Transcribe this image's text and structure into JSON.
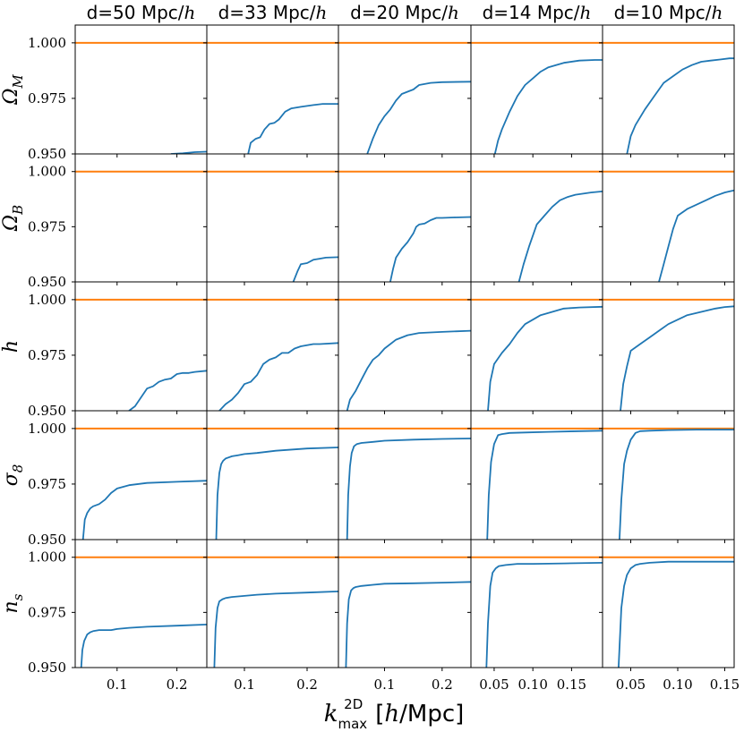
{
  "chart_data": {
    "type": "line",
    "layout": "grid 5 rows x 5 columns, shared y per row, shared x per column",
    "xlabel": {
      "symbol": "k",
      "sub": "max",
      "sup": "2D",
      "unit_pre": "[",
      "unit_h": "h",
      "unit_post": "/Mpc]"
    },
    "reference_line": {
      "y": 1.0,
      "color": "#ff7f0e"
    },
    "series_color": "#1f77b4",
    "ylim": [
      0.95,
      1.008
    ],
    "yticks": [
      0.95,
      0.975,
      1.0
    ],
    "ytick_labels": [
      "0.950",
      "0.975",
      "1.000"
    ],
    "columns": [
      {
        "title_pre": "d=50 Mpc/",
        "title_h": "h",
        "xlim": [
          0.03,
          0.25
        ],
        "xticks": [
          0.1,
          0.2
        ],
        "xtick_labels": [
          "0.1",
          "0.2"
        ]
      },
      {
        "title_pre": "d=33 Mpc/",
        "title_h": "h",
        "xlim": [
          0.04,
          0.25
        ],
        "xticks": [
          0.1,
          0.2
        ],
        "xtick_labels": [
          "0.1",
          "0.2"
        ]
      },
      {
        "title_pre": "d=20 Mpc/",
        "title_h": "h",
        "xlim": [
          0.02,
          0.25
        ],
        "xticks": [
          0.1,
          0.2
        ],
        "xtick_labels": [
          "0.1",
          "0.2"
        ]
      },
      {
        "title_pre": "d=14 Mpc/",
        "title_h": "h",
        "xlim": [
          0.02,
          0.19
        ],
        "xticks": [
          0.05,
          0.1,
          0.15
        ],
        "xtick_labels": [
          "0.05",
          "0.10",
          "0.15"
        ]
      },
      {
        "title_pre": "d=10 Mpc/",
        "title_h": "h",
        "xlim": [
          0.02,
          0.16
        ],
        "xticks": [
          0.05,
          0.1,
          0.15
        ],
        "xtick_labels": [
          "0.05",
          "0.10",
          "0.15"
        ]
      }
    ],
    "rows": [
      {
        "label": "Ω",
        "label_sub": "M",
        "series": [
          {
            "x": [
              0.19,
              0.21,
              0.23,
              0.25
            ],
            "y": [
              0.95,
              0.9503,
              0.9508,
              0.951
            ]
          },
          {
            "x": [
              0.106,
              0.11,
              0.118,
              0.125,
              0.132,
              0.14,
              0.148,
              0.155,
              0.165,
              0.175,
              0.19,
              0.21,
              0.225,
              0.25
            ],
            "y": [
              0.95,
              0.955,
              0.9568,
              0.9575,
              0.961,
              0.9635,
              0.964,
              0.9655,
              0.969,
              0.9705,
              0.9712,
              0.972,
              0.9725,
              0.9725
            ]
          },
          {
            "x": [
              0.07,
              0.08,
              0.09,
              0.1,
              0.11,
              0.12,
              0.13,
              0.14,
              0.15,
              0.16,
              0.18,
              0.2,
              0.25
            ],
            "y": [
              0.95,
              0.957,
              0.963,
              0.967,
              0.97,
              0.974,
              0.977,
              0.978,
              0.979,
              0.981,
              0.982,
              0.9823,
              0.9825
            ]
          },
          {
            "x": [
              0.051,
              0.055,
              0.06,
              0.07,
              0.08,
              0.09,
              0.1,
              0.11,
              0.12,
              0.13,
              0.14,
              0.16,
              0.18,
              0.19
            ],
            "y": [
              0.95,
              0.956,
              0.961,
              0.969,
              0.976,
              0.981,
              0.984,
              0.987,
              0.989,
              0.99,
              0.991,
              0.992,
              0.9923,
              0.9923
            ]
          },
          {
            "x": [
              0.046,
              0.05,
              0.055,
              0.065,
              0.075,
              0.085,
              0.095,
              0.105,
              0.115,
              0.125,
              0.135,
              0.145,
              0.155,
              0.16
            ],
            "y": [
              0.95,
              0.958,
              0.963,
              0.97,
              0.976,
              0.982,
              0.985,
              0.988,
              0.99,
              0.9915,
              0.992,
              0.9925,
              0.993,
              0.993
            ]
          }
        ]
      },
      {
        "label": "Ω",
        "label_sub": "B",
        "series": [
          {
            "x": [],
            "y": []
          },
          {
            "x": [
              0.178,
              0.185,
              0.19,
              0.2,
              0.21,
              0.22,
              0.23,
              0.25
            ],
            "y": [
              0.95,
              0.955,
              0.958,
              0.9585,
              0.96,
              0.9605,
              0.961,
              0.9612
            ]
          },
          {
            "x": [
              0.11,
              0.115,
              0.12,
              0.13,
              0.14,
              0.15,
              0.155,
              0.16,
              0.17,
              0.18,
              0.19,
              0.2,
              0.22,
              0.25
            ],
            "y": [
              0.95,
              0.956,
              0.961,
              0.965,
              0.968,
              0.972,
              0.975,
              0.976,
              0.9765,
              0.978,
              0.979,
              0.979,
              0.9792,
              0.9794
            ]
          },
          {
            "x": [
              0.082,
              0.088,
              0.095,
              0.105,
              0.115,
              0.125,
              0.135,
              0.145,
              0.155,
              0.165,
              0.175,
              0.19
            ],
            "y": [
              0.95,
              0.958,
              0.966,
              0.976,
              0.98,
              0.984,
              0.987,
              0.9885,
              0.9895,
              0.99,
              0.9905,
              0.991
            ]
          },
          {
            "x": [
              0.08,
              0.085,
              0.09,
              0.095,
              0.1,
              0.11,
              0.12,
              0.13,
              0.14,
              0.15,
              0.155,
              0.16
            ],
            "y": [
              0.95,
              0.958,
              0.966,
              0.974,
              0.98,
              0.983,
              0.985,
              0.987,
              0.989,
              0.9905,
              0.991,
              0.9915
            ]
          }
        ]
      },
      {
        "label": "h",
        "label_sub": "",
        "series": [
          {
            "x": [
              0.12,
              0.13,
              0.14,
              0.15,
              0.16,
              0.17,
              0.18,
              0.19,
              0.2,
              0.21,
              0.22,
              0.23,
              0.25
            ],
            "y": [
              0.95,
              0.952,
              0.956,
              0.96,
              0.961,
              0.963,
              0.964,
              0.9645,
              0.9665,
              0.967,
              0.967,
              0.9675,
              0.968
            ]
          },
          {
            "x": [
              0.06,
              0.07,
              0.08,
              0.09,
              0.1,
              0.11,
              0.12,
              0.13,
              0.14,
              0.15,
              0.16,
              0.17,
              0.18,
              0.19,
              0.2,
              0.21,
              0.22,
              0.25
            ],
            "y": [
              0.95,
              0.953,
              0.955,
              0.958,
              0.962,
              0.963,
              0.966,
              0.971,
              0.973,
              0.974,
              0.976,
              0.976,
              0.978,
              0.979,
              0.9795,
              0.98,
              0.98,
              0.9805
            ]
          },
          {
            "x": [
              0.035,
              0.04,
              0.05,
              0.06,
              0.07,
              0.08,
              0.09,
              0.1,
              0.12,
              0.14,
              0.16,
              0.2,
              0.25
            ],
            "y": [
              0.95,
              0.955,
              0.959,
              0.964,
              0.969,
              0.973,
              0.975,
              0.978,
              0.982,
              0.984,
              0.985,
              0.9855,
              0.986
            ]
          },
          {
            "x": [
              0.042,
              0.045,
              0.05,
              0.06,
              0.07,
              0.08,
              0.09,
              0.1,
              0.11,
              0.12,
              0.13,
              0.14,
              0.16,
              0.19
            ],
            "y": [
              0.95,
              0.963,
              0.971,
              0.976,
              0.98,
              0.985,
              0.989,
              0.991,
              0.993,
              0.994,
              0.995,
              0.996,
              0.9965,
              0.9968
            ]
          },
          {
            "x": [
              0.039,
              0.042,
              0.046,
              0.05,
              0.06,
              0.07,
              0.08,
              0.09,
              0.1,
              0.11,
              0.12,
              0.13,
              0.14,
              0.15,
              0.16
            ],
            "y": [
              0.95,
              0.962,
              0.97,
              0.977,
              0.98,
              0.983,
              0.986,
              0.989,
              0.991,
              0.993,
              0.994,
              0.995,
              0.996,
              0.9967,
              0.997
            ]
          }
        ]
      },
      {
        "label": "σ",
        "label_sub": "8",
        "series": [
          {
            "x": [
              0.043,
              0.046,
              0.05,
              0.055,
              0.06,
              0.07,
              0.08,
              0.09,
              0.1,
              0.12,
              0.15,
              0.2,
              0.25
            ],
            "y": [
              0.95,
              0.959,
              0.962,
              0.964,
              0.965,
              0.966,
              0.968,
              0.971,
              0.973,
              0.9745,
              0.9755,
              0.976,
              0.9765
            ]
          },
          {
            "x": [
              0.055,
              0.057,
              0.06,
              0.063,
              0.066,
              0.07,
              0.08,
              0.09,
              0.1,
              0.12,
              0.15,
              0.2,
              0.25
            ],
            "y": [
              0.95,
              0.97,
              0.98,
              0.984,
              0.9855,
              0.9865,
              0.9875,
              0.988,
              0.9885,
              0.989,
              0.99,
              0.991,
              0.9915
            ]
          },
          {
            "x": [
              0.035,
              0.037,
              0.04,
              0.043,
              0.047,
              0.052,
              0.06,
              0.08,
              0.1,
              0.15,
              0.2,
              0.25
            ],
            "y": [
              0.95,
              0.97,
              0.983,
              0.989,
              0.992,
              0.993,
              0.9935,
              0.994,
              0.9945,
              0.995,
              0.9953,
              0.9955
            ]
          },
          {
            "x": [
              0.041,
              0.043,
              0.046,
              0.05,
              0.055,
              0.06,
              0.07,
              0.09,
              0.12,
              0.16,
              0.19
            ],
            "y": [
              0.95,
              0.97,
              0.985,
              0.993,
              0.997,
              0.9975,
              0.998,
              0.9982,
              0.9985,
              0.9988,
              0.999
            ]
          },
          {
            "x": [
              0.038,
              0.04,
              0.043,
              0.046,
              0.05,
              0.055,
              0.06,
              0.07,
              0.09,
              0.12,
              0.16
            ],
            "y": [
              0.95,
              0.968,
              0.984,
              0.99,
              0.995,
              0.998,
              0.9988,
              0.999,
              0.9993,
              0.9995,
              0.9995
            ]
          }
        ]
      },
      {
        "label": "n",
        "label_sub": "s",
        "series": [
          {
            "x": [
              0.04,
              0.042,
              0.045,
              0.05,
              0.055,
              0.06,
              0.07,
              0.08,
              0.09,
              0.1,
              0.12,
              0.15,
              0.2,
              0.25
            ],
            "y": [
              0.95,
              0.958,
              0.962,
              0.965,
              0.966,
              0.9665,
              0.967,
              0.967,
              0.967,
              0.9675,
              0.968,
              0.9685,
              0.969,
              0.9695
            ]
          },
          {
            "x": [
              0.052,
              0.054,
              0.057,
              0.06,
              0.065,
              0.07,
              0.08,
              0.1,
              0.12,
              0.15,
              0.2,
              0.25
            ],
            "y": [
              0.95,
              0.968,
              0.977,
              0.98,
              0.981,
              0.9815,
              0.982,
              0.9825,
              0.983,
              0.9835,
              0.984,
              0.9845
            ]
          },
          {
            "x": [
              0.033,
              0.035,
              0.038,
              0.042,
              0.046,
              0.05,
              0.06,
              0.08,
              0.1,
              0.15,
              0.2,
              0.25
            ],
            "y": [
              0.95,
              0.97,
              0.981,
              0.985,
              0.986,
              0.9865,
              0.987,
              0.9875,
              0.988,
              0.9882,
              0.9885,
              0.9888
            ]
          },
          {
            "x": [
              0.04,
              0.042,
              0.045,
              0.048,
              0.052,
              0.056,
              0.065,
              0.08,
              0.1,
              0.14,
              0.19
            ],
            "y": [
              0.95,
              0.97,
              0.987,
              0.993,
              0.995,
              0.996,
              0.9965,
              0.997,
              0.997,
              0.9972,
              0.9975
            ]
          },
          {
            "x": [
              0.037,
              0.04,
              0.043,
              0.046,
              0.05,
              0.055,
              0.06,
              0.07,
              0.09,
              0.12,
              0.16
            ],
            "y": [
              0.95,
              0.977,
              0.987,
              0.992,
              0.995,
              0.9965,
              0.997,
              0.9975,
              0.998,
              0.998,
              0.998
            ]
          }
        ]
      }
    ]
  }
}
